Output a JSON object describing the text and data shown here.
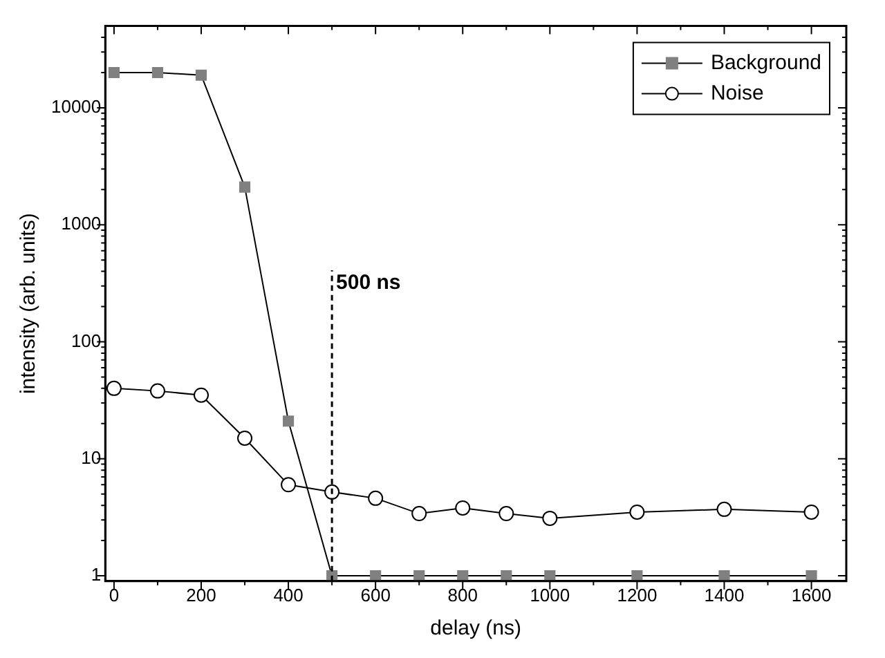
{
  "chart_data": {
    "type": "line",
    "xlabel": "delay (ns)",
    "ylabel": "intensity (arb. units)",
    "log": "y",
    "x": [
      0,
      100,
      200,
      300,
      400,
      500,
      600,
      700,
      800,
      900,
      1000,
      1200,
      1400,
      1600
    ],
    "series": [
      {
        "name": "Background",
        "color": "#808080",
        "marker": "square",
        "values": [
          20000,
          20000,
          19000,
          2100,
          21,
          1,
          1,
          1,
          1,
          1,
          1,
          1,
          1,
          1
        ]
      },
      {
        "name": "Noise",
        "color": "#ffffff",
        "marker": "circle",
        "values": [
          40,
          38,
          35,
          15,
          6,
          5.2,
          4.6,
          3.4,
          3.8,
          3.4,
          3.1,
          3.5,
          3.7,
          3.5
        ]
      }
    ],
    "xlim": [
      -20,
      1680
    ],
    "xticks": [
      0,
      {
        "value": 100,
        "label": null
      },
      200,
      {
        "value": 300,
        "label": null
      },
      400,
      {
        "value": 500,
        "label": null
      },
      600,
      {
        "value": 700,
        "label": null
      },
      800,
      {
        "value": 900,
        "label": null
      },
      1000,
      {
        "value": 1100,
        "label": null
      },
      1200,
      {
        "value": 1300,
        "label": null
      },
      1400,
      {
        "value": 1500,
        "label": null
      },
      1600
    ],
    "ylim": [
      0.9,
      50000
    ],
    "yticks": [
      1,
      {
        "value": 2,
        "label": null
      },
      {
        "value": 3,
        "label": null
      },
      {
        "value": 4,
        "label": null
      },
      {
        "value": 5,
        "label": null
      },
      {
        "value": 6,
        "label": null
      },
      {
        "value": 7,
        "label": null
      },
      {
        "value": 8,
        "label": null
      },
      {
        "value": 9,
        "label": null
      },
      10,
      {
        "value": 20,
        "label": null
      },
      {
        "value": 30,
        "label": null
      },
      {
        "value": 40,
        "label": null
      },
      {
        "value": 50,
        "label": null
      },
      {
        "value": 60,
        "label": null
      },
      {
        "value": 70,
        "label": null
      },
      {
        "value": 80,
        "label": null
      },
      {
        "value": 90,
        "label": null
      },
      100,
      {
        "value": 200,
        "label": null
      },
      {
        "value": 300,
        "label": null
      },
      {
        "value": 400,
        "label": null
      },
      {
        "value": 500,
        "label": null
      },
      {
        "value": 600,
        "label": null
      },
      {
        "value": 700,
        "label": null
      },
      {
        "value": 800,
        "label": null
      },
      {
        "value": 900,
        "label": null
      },
      1000,
      {
        "value": 2000,
        "label": null
      },
      {
        "value": 3000,
        "label": null
      },
      {
        "value": 4000,
        "label": null
      },
      {
        "value": 5000,
        "label": null
      },
      {
        "value": 6000,
        "label": null
      },
      {
        "value": 7000,
        "label": null
      },
      {
        "value": 8000,
        "label": null
      },
      {
        "value": 9000,
        "label": null
      },
      10000,
      {
        "value": 20000,
        "label": null
      },
      {
        "value": 30000,
        "label": null
      },
      {
        "value": 40000,
        "label": null
      }
    ],
    "ref_lines": [
      {
        "axis": "x",
        "value": 500,
        "label": "500 ns",
        "line_style": "dashed",
        "color": "#000000"
      }
    ],
    "grid": false,
    "legend": "top right",
    "line_style": "solid"
  }
}
